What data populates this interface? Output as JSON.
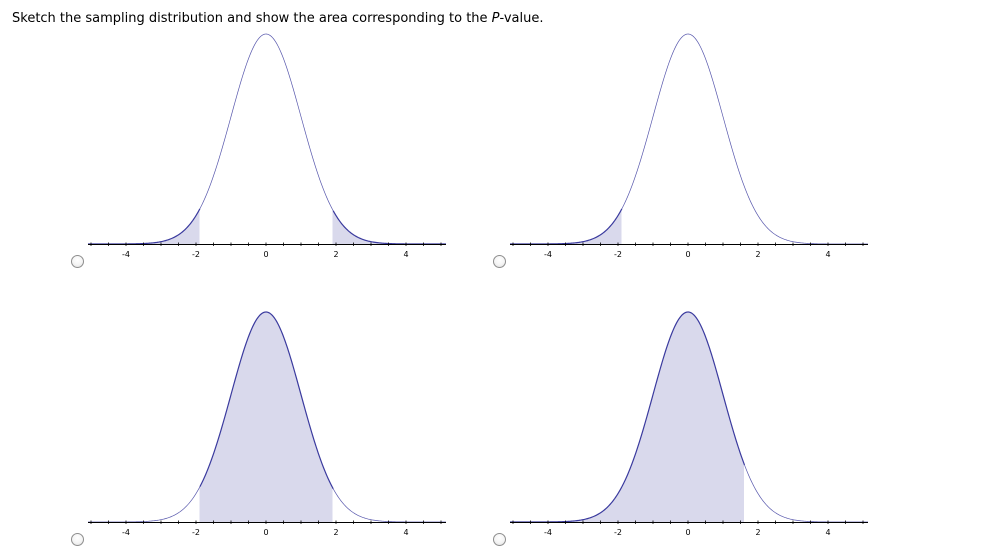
{
  "question": {
    "text_before": "Sketch the sampling distribution and show the area corresponding to the ",
    "text_italic": "P",
    "text_after": "-value."
  },
  "colors": {
    "curve": "#3a3a9e",
    "fill": "#d9d9ec",
    "axis": "#000000"
  },
  "options": [
    {
      "selected": false,
      "shading": "two-tailed",
      "shaded_regions": [
        [
          -6,
          -1.9
        ],
        [
          1.9,
          6
        ]
      ],
      "tick_labels": [
        "-4",
        "-2",
        "0",
        "2",
        "4"
      ]
    },
    {
      "selected": false,
      "shading": "left-tail",
      "shaded_regions": [
        [
          -6,
          -1.9
        ]
      ],
      "tick_labels": [
        "-4",
        "-2",
        "0",
        "2",
        "4"
      ]
    },
    {
      "selected": false,
      "shading": "center",
      "shaded_regions": [
        [
          -1.9,
          1.9
        ]
      ],
      "tick_labels": [
        "-4",
        "-2",
        "0",
        "2",
        "4"
      ]
    },
    {
      "selected": false,
      "shading": "left-of-value",
      "shaded_regions": [
        [
          -6,
          1.6
        ]
      ],
      "tick_labels": [
        "-4",
        "-2",
        "0",
        "2",
        "4"
      ]
    }
  ],
  "chart_data": [
    {
      "type": "area",
      "distribution": "standard normal",
      "xlim": [
        -5,
        5
      ],
      "x_ticks": [
        -4,
        -2,
        0,
        2,
        4
      ],
      "shaded_regions": [
        [
          -6,
          -1.9
        ],
        [
          1.9,
          6
        ]
      ]
    },
    {
      "type": "area",
      "distribution": "standard normal",
      "xlim": [
        -5,
        5
      ],
      "x_ticks": [
        -4,
        -2,
        0,
        2,
        4
      ],
      "shaded_regions": [
        [
          -6,
          -1.9
        ]
      ]
    },
    {
      "type": "area",
      "distribution": "standard normal",
      "xlim": [
        -5,
        5
      ],
      "x_ticks": [
        -4,
        -2,
        0,
        2,
        4
      ],
      "shaded_regions": [
        [
          -1.9,
          1.9
        ]
      ]
    },
    {
      "type": "area",
      "distribution": "standard normal",
      "xlim": [
        -5,
        5
      ],
      "x_ticks": [
        -4,
        -2,
        0,
        2,
        4
      ],
      "shaded_regions": [
        [
          -6,
          1.6
        ]
      ]
    }
  ]
}
